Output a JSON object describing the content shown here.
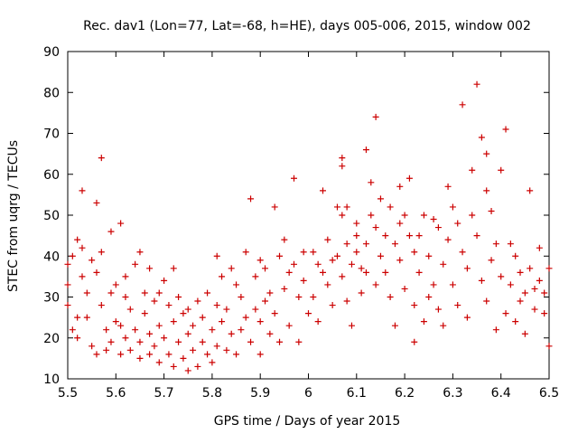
{
  "chart_data": {
    "type": "scatter",
    "title": "Rec. dav1 (Lon=77, Lat=-68, h=HE), days 005-006, 2015, window 002",
    "xlabel": "GPS time / Days of year 2015",
    "ylabel": "STEC from uqrg / TECUs",
    "xlim": [
      5.5,
      6.5
    ],
    "ylim": [
      10,
      90
    ],
    "xticks": [
      "5.5",
      "5.6",
      "5.7",
      "5.8",
      "5.9",
      "6",
      "6.1",
      "6.2",
      "6.3",
      "6.4",
      "6.5"
    ],
    "yticks": [
      "10",
      "20",
      "30",
      "40",
      "50",
      "60",
      "70",
      "80",
      "90"
    ],
    "grid": false,
    "marker": "+",
    "color": "#cc0000",
    "points": [
      [
        5.5,
        38
      ],
      [
        5.5,
        33
      ],
      [
        5.5,
        28
      ],
      [
        5.51,
        22
      ],
      [
        5.51,
        40
      ],
      [
        5.52,
        44
      ],
      [
        5.52,
        25
      ],
      [
        5.52,
        20
      ],
      [
        5.53,
        35
      ],
      [
        5.53,
        42
      ],
      [
        5.53,
        56
      ],
      [
        5.54,
        31
      ],
      [
        5.54,
        25
      ],
      [
        5.55,
        18
      ],
      [
        5.55,
        39
      ],
      [
        5.56,
        53
      ],
      [
        5.56,
        36
      ],
      [
        5.56,
        16
      ],
      [
        5.57,
        41
      ],
      [
        5.57,
        28
      ],
      [
        5.57,
        64
      ],
      [
        5.58,
        22
      ],
      [
        5.58,
        17
      ],
      [
        5.59,
        46
      ],
      [
        5.59,
        31
      ],
      [
        5.59,
        19
      ],
      [
        5.6,
        33
      ],
      [
        5.6,
        24
      ],
      [
        5.61,
        48
      ],
      [
        5.61,
        23
      ],
      [
        5.61,
        16
      ],
      [
        5.62,
        35
      ],
      [
        5.62,
        30
      ],
      [
        5.62,
        20
      ],
      [
        5.63,
        27
      ],
      [
        5.63,
        17
      ],
      [
        5.64,
        38
      ],
      [
        5.64,
        22
      ],
      [
        5.65,
        41
      ],
      [
        5.65,
        19
      ],
      [
        5.65,
        15
      ],
      [
        5.66,
        31
      ],
      [
        5.66,
        26
      ],
      [
        5.67,
        37
      ],
      [
        5.67,
        21
      ],
      [
        5.67,
        16
      ],
      [
        5.68,
        29
      ],
      [
        5.68,
        18
      ],
      [
        5.69,
        31
      ],
      [
        5.69,
        23
      ],
      [
        5.69,
        14
      ],
      [
        5.7,
        34
      ],
      [
        5.7,
        20
      ],
      [
        5.71,
        28
      ],
      [
        5.71,
        16
      ],
      [
        5.72,
        37
      ],
      [
        5.72,
        24
      ],
      [
        5.72,
        13
      ],
      [
        5.73,
        30
      ],
      [
        5.73,
        19
      ],
      [
        5.74,
        26
      ],
      [
        5.74,
        15
      ],
      [
        5.75,
        27
      ],
      [
        5.75,
        21
      ],
      [
        5.75,
        12
      ],
      [
        5.76,
        23
      ],
      [
        5.76,
        17
      ],
      [
        5.77,
        29
      ],
      [
        5.77,
        13
      ],
      [
        5.78,
        25
      ],
      [
        5.78,
        19
      ],
      [
        5.79,
        16
      ],
      [
        5.79,
        31
      ],
      [
        5.8,
        22
      ],
      [
        5.8,
        14
      ],
      [
        5.81,
        40
      ],
      [
        5.81,
        28
      ],
      [
        5.81,
        18
      ],
      [
        5.82,
        35
      ],
      [
        5.82,
        24
      ],
      [
        5.83,
        17
      ],
      [
        5.83,
        27
      ],
      [
        5.84,
        37
      ],
      [
        5.84,
        21
      ],
      [
        5.85,
        33
      ],
      [
        5.85,
        16
      ],
      [
        5.86,
        30
      ],
      [
        5.86,
        22
      ],
      [
        5.87,
        41
      ],
      [
        5.87,
        25
      ],
      [
        5.88,
        54
      ],
      [
        5.88,
        19
      ],
      [
        5.89,
        35
      ],
      [
        5.89,
        27
      ],
      [
        5.9,
        39
      ],
      [
        5.9,
        24
      ],
      [
        5.9,
        16
      ],
      [
        5.91,
        37
      ],
      [
        5.91,
        29
      ],
      [
        5.92,
        31
      ],
      [
        5.92,
        21
      ],
      [
        5.93,
        52
      ],
      [
        5.93,
        26
      ],
      [
        5.94,
        40
      ],
      [
        5.94,
        19
      ],
      [
        5.95,
        44
      ],
      [
        5.95,
        32
      ],
      [
        5.96,
        36
      ],
      [
        5.96,
        23
      ],
      [
        5.97,
        59
      ],
      [
        5.97,
        38
      ],
      [
        5.98,
        30
      ],
      [
        5.98,
        19
      ],
      [
        5.99,
        41
      ],
      [
        5.99,
        34
      ],
      [
        6.0,
        26
      ],
      [
        6.01,
        41
      ],
      [
        6.01,
        30
      ],
      [
        6.02,
        38
      ],
      [
        6.02,
        24
      ],
      [
        6.03,
        56
      ],
      [
        6.03,
        36
      ],
      [
        6.04,
        44
      ],
      [
        6.04,
        33
      ],
      [
        6.05,
        39
      ],
      [
        6.05,
        28
      ],
      [
        6.06,
        52
      ],
      [
        6.06,
        40
      ],
      [
        6.07,
        64
      ],
      [
        6.07,
        62
      ],
      [
        6.07,
        50
      ],
      [
        6.07,
        35
      ],
      [
        6.08,
        52
      ],
      [
        6.08,
        43
      ],
      [
        6.08,
        29
      ],
      [
        6.09,
        38
      ],
      [
        6.09,
        23
      ],
      [
        6.1,
        48
      ],
      [
        6.1,
        45
      ],
      [
        6.1,
        41
      ],
      [
        6.11,
        37
      ],
      [
        6.11,
        31
      ],
      [
        6.12,
        66
      ],
      [
        6.12,
        43
      ],
      [
        6.12,
        36
      ],
      [
        6.13,
        58
      ],
      [
        6.13,
        50
      ],
      [
        6.14,
        74
      ],
      [
        6.14,
        47
      ],
      [
        6.14,
        33
      ],
      [
        6.15,
        54
      ],
      [
        6.15,
        40
      ],
      [
        6.16,
        45
      ],
      [
        6.16,
        36
      ],
      [
        6.17,
        52
      ],
      [
        6.17,
        30
      ],
      [
        6.18,
        43
      ],
      [
        6.18,
        23
      ],
      [
        6.19,
        57
      ],
      [
        6.19,
        48
      ],
      [
        6.19,
        39
      ],
      [
        6.2,
        50
      ],
      [
        6.2,
        32
      ],
      [
        6.21,
        59
      ],
      [
        6.21,
        45
      ],
      [
        6.22,
        41
      ],
      [
        6.22,
        28
      ],
      [
        6.22,
        19
      ],
      [
        6.23,
        45
      ],
      [
        6.23,
        36
      ],
      [
        6.24,
        50
      ],
      [
        6.24,
        24
      ],
      [
        6.25,
        40
      ],
      [
        6.25,
        30
      ],
      [
        6.26,
        49
      ],
      [
        6.26,
        33
      ],
      [
        6.27,
        47
      ],
      [
        6.27,
        27
      ],
      [
        6.28,
        38
      ],
      [
        6.28,
        23
      ],
      [
        6.29,
        57
      ],
      [
        6.29,
        44
      ],
      [
        6.3,
        52
      ],
      [
        6.3,
        33
      ],
      [
        6.31,
        48
      ],
      [
        6.31,
        28
      ],
      [
        6.32,
        77
      ],
      [
        6.32,
        41
      ],
      [
        6.33,
        37
      ],
      [
        6.33,
        25
      ],
      [
        6.34,
        61
      ],
      [
        6.34,
        50
      ],
      [
        6.35,
        82
      ],
      [
        6.35,
        45
      ],
      [
        6.36,
        69
      ],
      [
        6.36,
        34
      ],
      [
        6.37,
        65
      ],
      [
        6.37,
        56
      ],
      [
        6.37,
        29
      ],
      [
        6.38,
        51
      ],
      [
        6.38,
        39
      ],
      [
        6.39,
        43
      ],
      [
        6.39,
        22
      ],
      [
        6.4,
        61
      ],
      [
        6.4,
        35
      ],
      [
        6.41,
        71
      ],
      [
        6.41,
        26
      ],
      [
        6.42,
        43
      ],
      [
        6.42,
        33
      ],
      [
        6.43,
        40
      ],
      [
        6.43,
        24
      ],
      [
        6.44,
        36
      ],
      [
        6.44,
        29
      ],
      [
        6.45,
        31
      ],
      [
        6.45,
        21
      ],
      [
        6.46,
        56
      ],
      [
        6.46,
        37
      ],
      [
        6.47,
        32
      ],
      [
        6.47,
        27
      ],
      [
        6.48,
        42
      ],
      [
        6.48,
        34
      ],
      [
        6.49,
        31
      ],
      [
        6.49,
        26
      ],
      [
        6.5,
        37
      ],
      [
        6.5,
        18
      ]
    ]
  }
}
